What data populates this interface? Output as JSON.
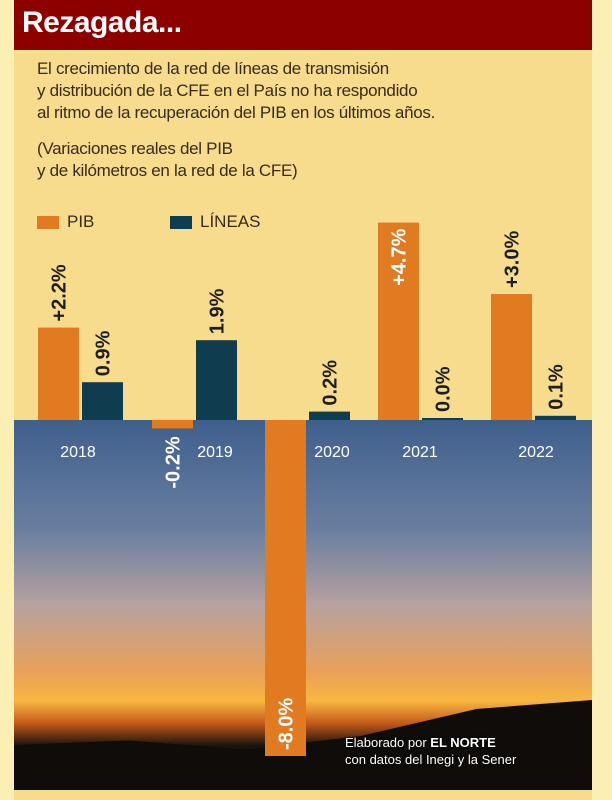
{
  "header": {
    "title": "Rezagada..."
  },
  "intro": {
    "lines": [
      "El crecimiento de la red de líneas de transmisión",
      "y distribución de la CFE en el País no ha respondido",
      "al ritmo de la recuperación del PIB en los últimos años."
    ],
    "note": [
      "(Variaciones reales del PIB",
      "y de kilómetros en la red de la CFE)"
    ]
  },
  "credit": {
    "line1_prefix": "Elaborado por ",
    "line1_brand": "EL NORTE",
    "line2": "con datos del Inegi y la Sener"
  },
  "colors": {
    "pib": "#e07b22",
    "lineas": "#0f3d4f",
    "header": "#8c0000"
  },
  "chart_data": {
    "type": "bar",
    "title": "Rezagada...",
    "categories": [
      "2018",
      "2019",
      "2020",
      "2021",
      "2022"
    ],
    "series": [
      {
        "name": "PIB",
        "values": [
          2.2,
          -0.2,
          -8.0,
          4.7,
          3.0
        ],
        "labels": [
          "+2.2%",
          "-0.2%",
          "-8.0%",
          "+4.7%",
          "+3.0%"
        ]
      },
      {
        "name": "LÍNEAS",
        "values": [
          0.9,
          1.9,
          0.2,
          0.0,
          0.1
        ],
        "labels": [
          "0.9%",
          "1.9%",
          "0.2%",
          "0.0%",
          "0.1%"
        ]
      }
    ],
    "legend": "top-left",
    "ylim": [
      -8.5,
      5
    ],
    "grid": false
  }
}
